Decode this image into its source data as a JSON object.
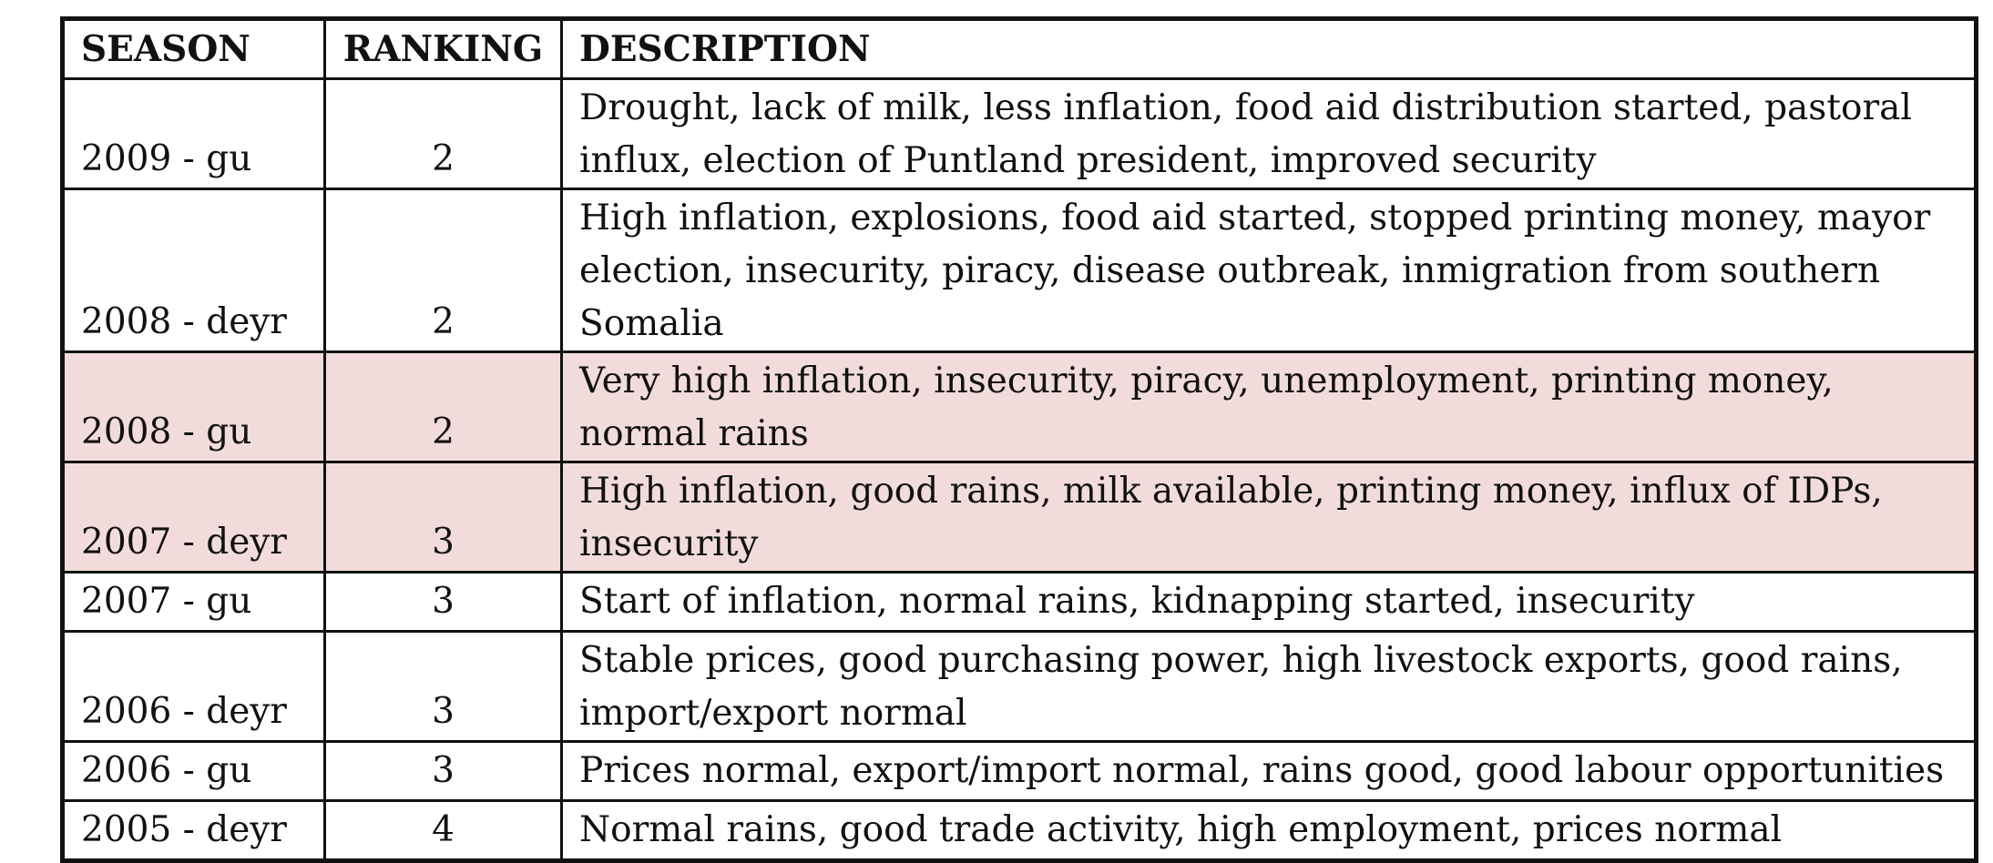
{
  "table": {
    "headers": {
      "season": "SEASON",
      "ranking": "RANKING",
      "description": "DESCRIPTION"
    },
    "highlight_color": "#F2DCDB",
    "rows": [
      {
        "season": "2009 - gu",
        "ranking": "2",
        "description": "Drought, lack of milk, less inflation, food aid distribution started, pastoral influx, election of Puntland president, improved security",
        "highlighted": false
      },
      {
        "season": "2008 - deyr",
        "ranking": "2",
        "description": "High inflation, explosions, food aid started, stopped printing money, mayor election, insecurity, piracy, disease outbreak, inmigration from southern Somalia",
        "highlighted": false
      },
      {
        "season": "2008 - gu",
        "ranking": "2",
        "description": "Very high inflation, insecurity, piracy, unemployment, printing money, normal rains",
        "highlighted": true
      },
      {
        "season": "2007 - deyr",
        "ranking": "3",
        "description": "High inflation, good rains, milk available, printing money, influx of IDPs, insecurity",
        "highlighted": true
      },
      {
        "season": "2007 - gu",
        "ranking": "3",
        "description": "Start of inflation, normal rains, kidnapping started, insecurity",
        "highlighted": false
      },
      {
        "season": "2006 - deyr",
        "ranking": "3",
        "description": "Stable prices, good purchasing power, high livestock exports, good rains, import/export normal",
        "highlighted": false
      },
      {
        "season": "2006 - gu",
        "ranking": "3",
        "description": "Prices normal, export/import normal, rains good, good labour opportunities",
        "highlighted": false
      },
      {
        "season": "2005 - deyr",
        "ranking": "4",
        "description": "Normal rains, good trade activity, high employment, prices normal",
        "highlighted": false
      }
    ]
  }
}
